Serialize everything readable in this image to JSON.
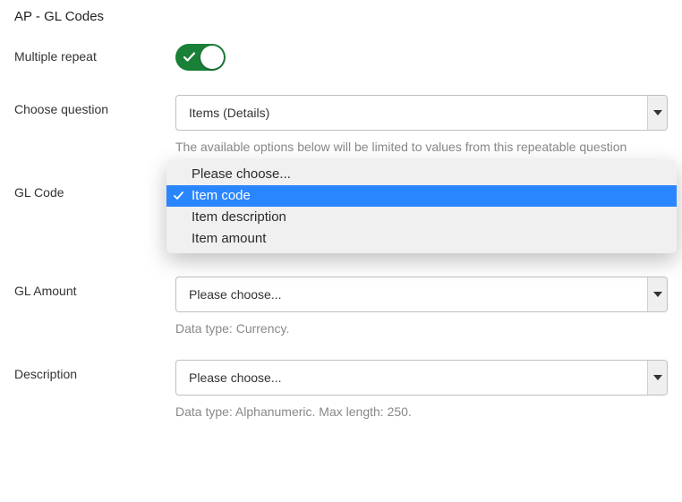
{
  "title": "AP - GL Codes",
  "colors": {
    "toggle_on": "#1a7f37",
    "highlight": "#2a86ff",
    "focus_ring": "#f6d600",
    "hint": "#888888",
    "border": "#bfbfbf",
    "arrow_zone": "#efefef"
  },
  "fields": {
    "multiple_repeat": {
      "label": "Multiple repeat",
      "on": true
    },
    "choose_question": {
      "label": "Choose question",
      "value": "Items (Details)",
      "hint": "The available options below will be limited to values from this repeatable question"
    },
    "gl_code": {
      "label": "GL Code",
      "dropdown": {
        "options": [
          {
            "label": "Please choose...",
            "selected": false
          },
          {
            "label": "Item code",
            "selected": true
          },
          {
            "label": "Item description",
            "selected": false
          },
          {
            "label": "Item amount",
            "selected": false
          }
        ]
      }
    },
    "gl_amount": {
      "label": "GL Amount",
      "value": "Please choose...",
      "hint": "Data type: Currency."
    },
    "description": {
      "label": "Description",
      "value": "Please choose...",
      "hint": "Data type: Alphanumeric. Max length: 250."
    }
  }
}
